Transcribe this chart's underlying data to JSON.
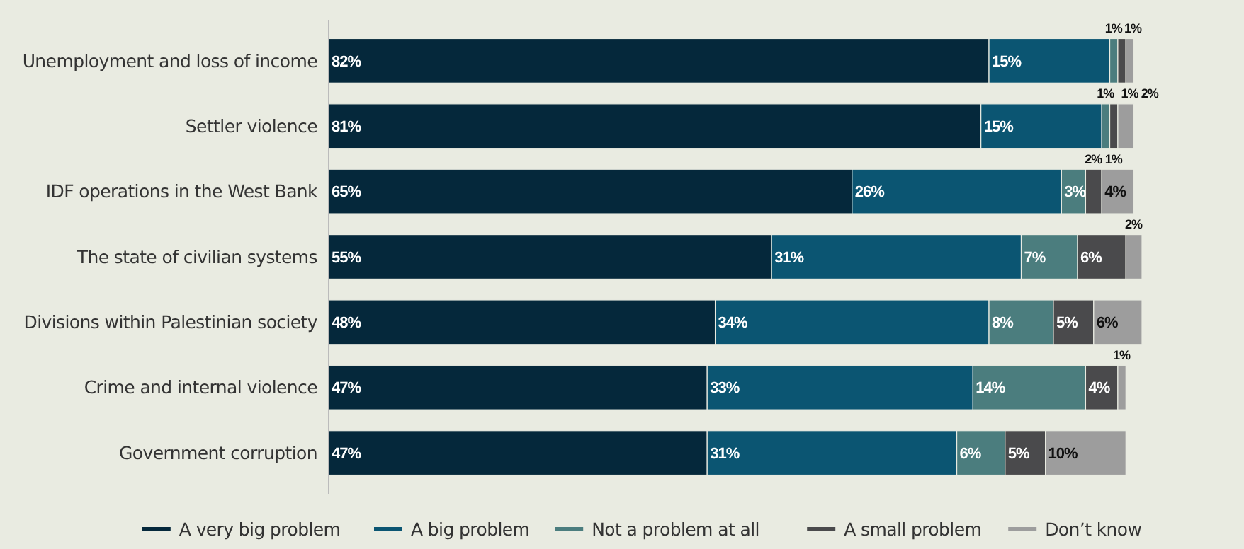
{
  "chart_data": {
    "type": "bar",
    "orientation": "horizontal",
    "stacked": true,
    "categories": [
      "Unemployment and loss of income",
      "Settler violence",
      "IDF operations in the West Bank",
      "The state of civilian systems",
      "Divisions within Palestinian society",
      "Crime and internal violence",
      "Government corruption"
    ],
    "xlim": [
      0,
      101
    ],
    "tick_labels": "y",
    "legend": "bottom",
    "grid": false,
    "series": [
      {
        "name": "A very big problem",
        "color": "#05283b",
        "values": [
          82,
          81,
          65,
          55,
          48,
          47,
          47
        ],
        "value_labels": [
          "82%",
          "81%",
          "65%",
          "55%",
          "48%",
          "47%",
          "47%"
        ]
      },
      {
        "name": "A big problem",
        "color": "#0b5572",
        "values": [
          15,
          15,
          26,
          31,
          34,
          33,
          31
        ],
        "value_labels": [
          "15%",
          "15%",
          "26%",
          "31%",
          "34%",
          "33%",
          "31%"
        ]
      },
      {
        "name": "Not a problem at all",
        "color": "#4b7d7e",
        "values": [
          1,
          1,
          3,
          7,
          8,
          14,
          6
        ],
        "value_labels": [
          "1%",
          "1%",
          "3%",
          "7%",
          "8%",
          "14%",
          "6%"
        ]
      },
      {
        "name": "A small problem",
        "color": "#4a4a4c",
        "values": [
          1,
          1,
          2,
          6,
          5,
          4,
          5
        ],
        "value_labels": [
          "1%",
          "1%",
          "2%",
          "6%",
          "5%",
          "4%",
          "5%"
        ]
      },
      {
        "name": "Don’t know",
        "color": "#9d9d9d",
        "values": [
          1,
          2,
          4,
          2,
          6,
          1,
          10
        ],
        "value_labels": [
          "1%",
          "2%",
          "4%",
          "2%",
          "6%",
          "1%",
          "10%"
        ]
      }
    ]
  }
}
